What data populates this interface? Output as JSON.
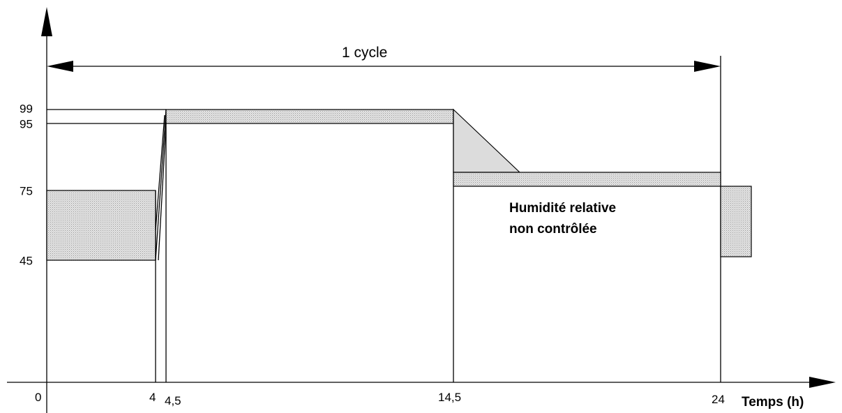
{
  "y_labels": [
    "99",
    "95",
    "75",
    "45"
  ],
  "x_labels": [
    "0",
    "4",
    "4,5",
    "14,5",
    "24"
  ],
  "x_axis_label": "Temps (h)",
  "cycle_label": "1 cycle",
  "annotation": [
    "Humidité relative",
    "non contrôlée"
  ]
}
